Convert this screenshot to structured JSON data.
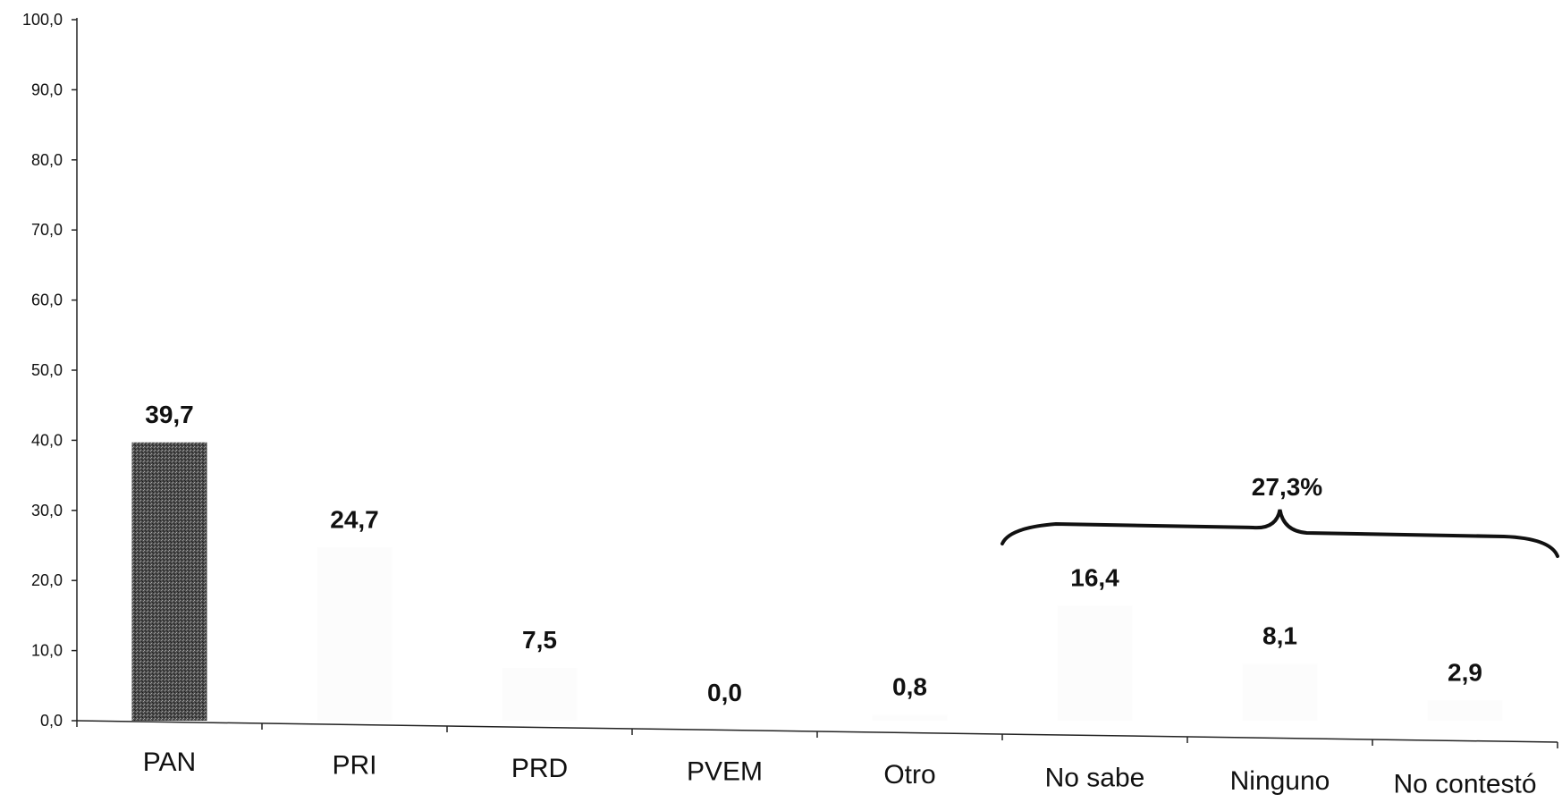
{
  "chart_data": {
    "type": "bar",
    "categories": [
      "PAN",
      "PRI",
      "PRD",
      "PVEM",
      "Otro",
      "No sabe",
      "Ninguno",
      "No contestó"
    ],
    "values": [
      39.7,
      24.7,
      7.5,
      0.0,
      0.8,
      16.4,
      8.1,
      2.9
    ],
    "value_labels": [
      "39,7",
      "24,7",
      "7,5",
      "0,0",
      "0,8",
      "16,4",
      "8,1",
      "2,9"
    ],
    "ylim": [
      0,
      100
    ],
    "yticks": [
      0,
      10,
      20,
      30,
      40,
      50,
      60,
      70,
      80,
      90,
      100
    ],
    "ytick_labels": [
      "0,0",
      "10,0",
      "20,0",
      "30,0",
      "40,0",
      "50,0",
      "60,0",
      "70,0",
      "80,0",
      "90,0",
      "100,0"
    ],
    "grid": false,
    "bar_color": "#5a5a5a",
    "group_annotation": {
      "label": "27,3%",
      "categories": [
        "No sabe",
        "Ninguno",
        "No contestó"
      ]
    }
  }
}
